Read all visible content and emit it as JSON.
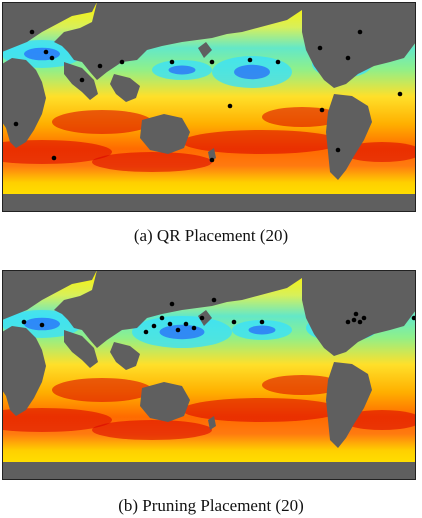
{
  "figure": {
    "panels": [
      {
        "caption": "(a) QR Placement (20)",
        "sensor_count": 20,
        "sensor_color": "#000000",
        "sensor_legend_name": "sensor"
      },
      {
        "caption": "(b) Pruning Placement (20)",
        "sensor_count": 20,
        "sensor_color": "#000000",
        "sensor_legend_name": "sensor"
      }
    ],
    "map_type": "global sea surface temperature heat map with sensor placements",
    "colors": {
      "land": "#5f5f5f",
      "ice": "#fff200",
      "cold": "#1f4fff",
      "cool": "#36e0ff",
      "mild": "#9cf07a",
      "warm": "#ffd21a",
      "hot": "#ff6a00",
      "hottest": "#d80000",
      "border": "#222222"
    }
  }
}
